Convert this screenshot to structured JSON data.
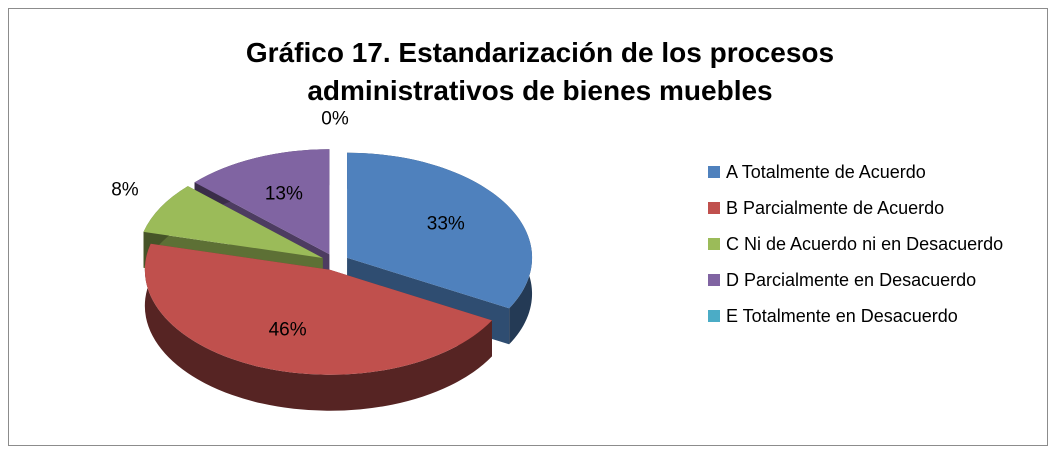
{
  "chart_data": {
    "type": "pie3d",
    "title": "Gráfico 17. Estandarización de los procesos administrativos de bienes muebles",
    "categories": [
      "A Totalmente de Acuerdo",
      "B Parcialmente de Acuerdo",
      "C Ni de Acuerdo ni en Desacuerdo",
      "D Parcialmente en Desacuerdo",
      "E Totalmente en Desacuerdo"
    ],
    "values": [
      33,
      46,
      8,
      13,
      0
    ],
    "value_labels": [
      "33%",
      "46%",
      "8%",
      "13%",
      "0%"
    ],
    "colors": [
      "#4f81bd",
      "#c0504d",
      "#9bbb59",
      "#8064a2",
      "#4bacc6"
    ],
    "legend": "right"
  }
}
